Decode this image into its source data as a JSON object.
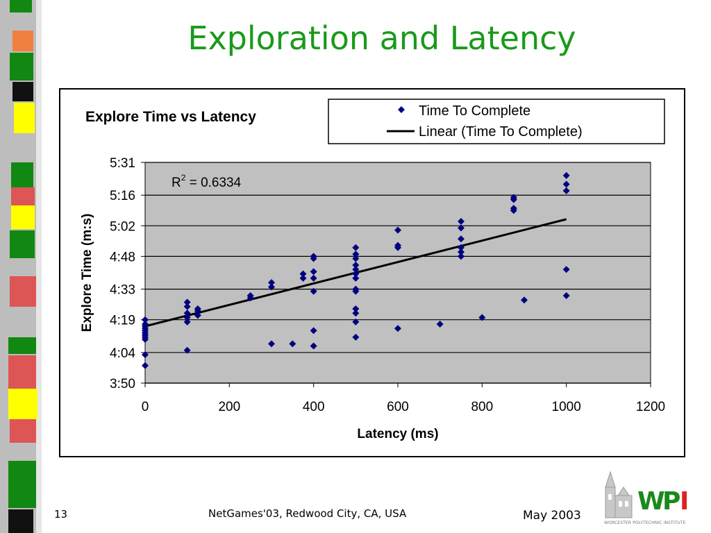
{
  "slide": {
    "title": "Exploration and Latency",
    "page_number": "13",
    "footer_center": "NetGames'03, Redwood City, CA, USA",
    "footer_date": "May 2003",
    "logo_text": "WPI",
    "logo_subtext": "WORCESTER POLYTECHNIC INSTITUTE"
  },
  "chart_data": {
    "type": "scatter",
    "title": "Explore Time vs Latency",
    "xlabel": "Latency (ms)",
    "ylabel": "Explore Time (m:s)",
    "xlim": [
      0,
      1200
    ],
    "xticks": [
      "0",
      "200",
      "400",
      "600",
      "800",
      "1000",
      "1200"
    ],
    "ylim": [
      "3:50",
      "5:31"
    ],
    "yticks": [
      "3:50",
      "4:04",
      "4:19",
      "4:33",
      "4:48",
      "5:02",
      "5:16",
      "5:31"
    ],
    "grid": "horizontal",
    "plot_background": "#c0c0c0",
    "legend_position": "top-right",
    "annotation": {
      "base": "R",
      "superscript": "2",
      "text": " = 0.6334"
    },
    "series": [
      {
        "name": "Time To Complete",
        "marker": "diamond",
        "color": "#000080",
        "points": [
          [
            0,
            "4:19"
          ],
          [
            0,
            "4:17"
          ],
          [
            0,
            "4:16"
          ],
          [
            0,
            "4:15"
          ],
          [
            0,
            "4:14"
          ],
          [
            0,
            "4:13"
          ],
          [
            0,
            "4:12"
          ],
          [
            0,
            "4:11"
          ],
          [
            0,
            "4:10"
          ],
          [
            0,
            "4:03"
          ],
          [
            0,
            "3:58"
          ],
          [
            100,
            "4:05"
          ],
          [
            100,
            "4:18"
          ],
          [
            100,
            "4:20"
          ],
          [
            100,
            "4:22"
          ],
          [
            100,
            "4:25"
          ],
          [
            100,
            "4:27"
          ],
          [
            125,
            "4:21"
          ],
          [
            125,
            "4:23"
          ],
          [
            125,
            "4:24"
          ],
          [
            250,
            "4:29"
          ],
          [
            250,
            "4:30"
          ],
          [
            300,
            "4:08"
          ],
          [
            300,
            "4:34"
          ],
          [
            300,
            "4:36"
          ],
          [
            350,
            "4:08"
          ],
          [
            375,
            "4:38"
          ],
          [
            375,
            "4:40"
          ],
          [
            400,
            "4:07"
          ],
          [
            400,
            "4:14"
          ],
          [
            400,
            "4:32"
          ],
          [
            400,
            "4:38"
          ],
          [
            400,
            "4:41"
          ],
          [
            400,
            "4:47"
          ],
          [
            400,
            "4:48"
          ],
          [
            500,
            "4:11"
          ],
          [
            500,
            "4:18"
          ],
          [
            500,
            "4:22"
          ],
          [
            500,
            "4:24"
          ],
          [
            500,
            "4:32"
          ],
          [
            500,
            "4:33"
          ],
          [
            500,
            "4:38"
          ],
          [
            500,
            "4:40"
          ],
          [
            500,
            "4:42"
          ],
          [
            500,
            "4:44"
          ],
          [
            500,
            "4:47"
          ],
          [
            500,
            "4:49"
          ],
          [
            500,
            "4:52"
          ],
          [
            600,
            "4:15"
          ],
          [
            600,
            "4:52"
          ],
          [
            600,
            "4:53"
          ],
          [
            600,
            "5:00"
          ],
          [
            700,
            "4:17"
          ],
          [
            750,
            "4:48"
          ],
          [
            750,
            "4:50"
          ],
          [
            750,
            "4:52"
          ],
          [
            750,
            "4:56"
          ],
          [
            750,
            "5:01"
          ],
          [
            750,
            "5:04"
          ],
          [
            800,
            "4:20"
          ],
          [
            875,
            "5:09"
          ],
          [
            875,
            "5:10"
          ],
          [
            875,
            "5:14"
          ],
          [
            875,
            "5:15"
          ],
          [
            900,
            "4:28"
          ],
          [
            1000,
            "4:30"
          ],
          [
            1000,
            "4:42"
          ],
          [
            1000,
            "5:18"
          ],
          [
            1000,
            "5:21"
          ],
          [
            1000,
            "5:25"
          ]
        ]
      },
      {
        "name": "Linear (Time To Complete)",
        "marker": "line",
        "color": "#000000",
        "points": [
          [
            0,
            "4:16"
          ],
          [
            1000,
            "5:05"
          ]
        ]
      }
    ]
  }
}
